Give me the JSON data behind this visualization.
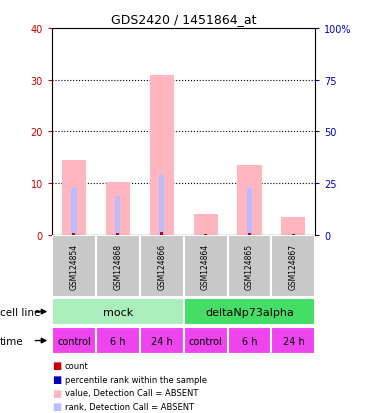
{
  "title": "GDS2420 / 1451864_at",
  "samples": [
    "GSM124854",
    "GSM124868",
    "GSM124866",
    "GSM124864",
    "GSM124865",
    "GSM124867"
  ],
  "pink_values": [
    14.5,
    10.2,
    31.0,
    4.0,
    13.5,
    3.5
  ],
  "blue_values": [
    9.0,
    7.5,
    11.5,
    0.0,
    9.0,
    0.0
  ],
  "red_values": [
    0.4,
    0.3,
    0.5,
    0.2,
    0.3,
    0.2
  ],
  "left_ylim": [
    0,
    40
  ],
  "right_ylim": [
    0,
    100
  ],
  "left_yticks": [
    0,
    10,
    20,
    30,
    40
  ],
  "right_yticks": [
    0,
    25,
    50,
    75,
    100
  ],
  "right_yticklabels": [
    "0",
    "25",
    "50",
    "75",
    "100%"
  ],
  "time_labels": [
    "control",
    "6 h",
    "24 h",
    "control",
    "6 h",
    "24 h"
  ],
  "time_color": "#EE44EE",
  "mock_color": "#AAEEBB",
  "delta_color": "#44DD66",
  "sample_bg_color": "#C8C8C8",
  "left_tick_color": "#CC0000",
  "right_tick_color": "#0000BB",
  "bar_width": 0.55,
  "blue_bar_width": 0.12,
  "red_bar_width": 0.07,
  "legend_colors": [
    "#CC0000",
    "#0000BB",
    "#FFB6C1",
    "#BBBBFF"
  ],
  "legend_labels": [
    "count",
    "percentile rank within the sample",
    "value, Detection Call = ABSENT",
    "rank, Detection Call = ABSENT"
  ]
}
